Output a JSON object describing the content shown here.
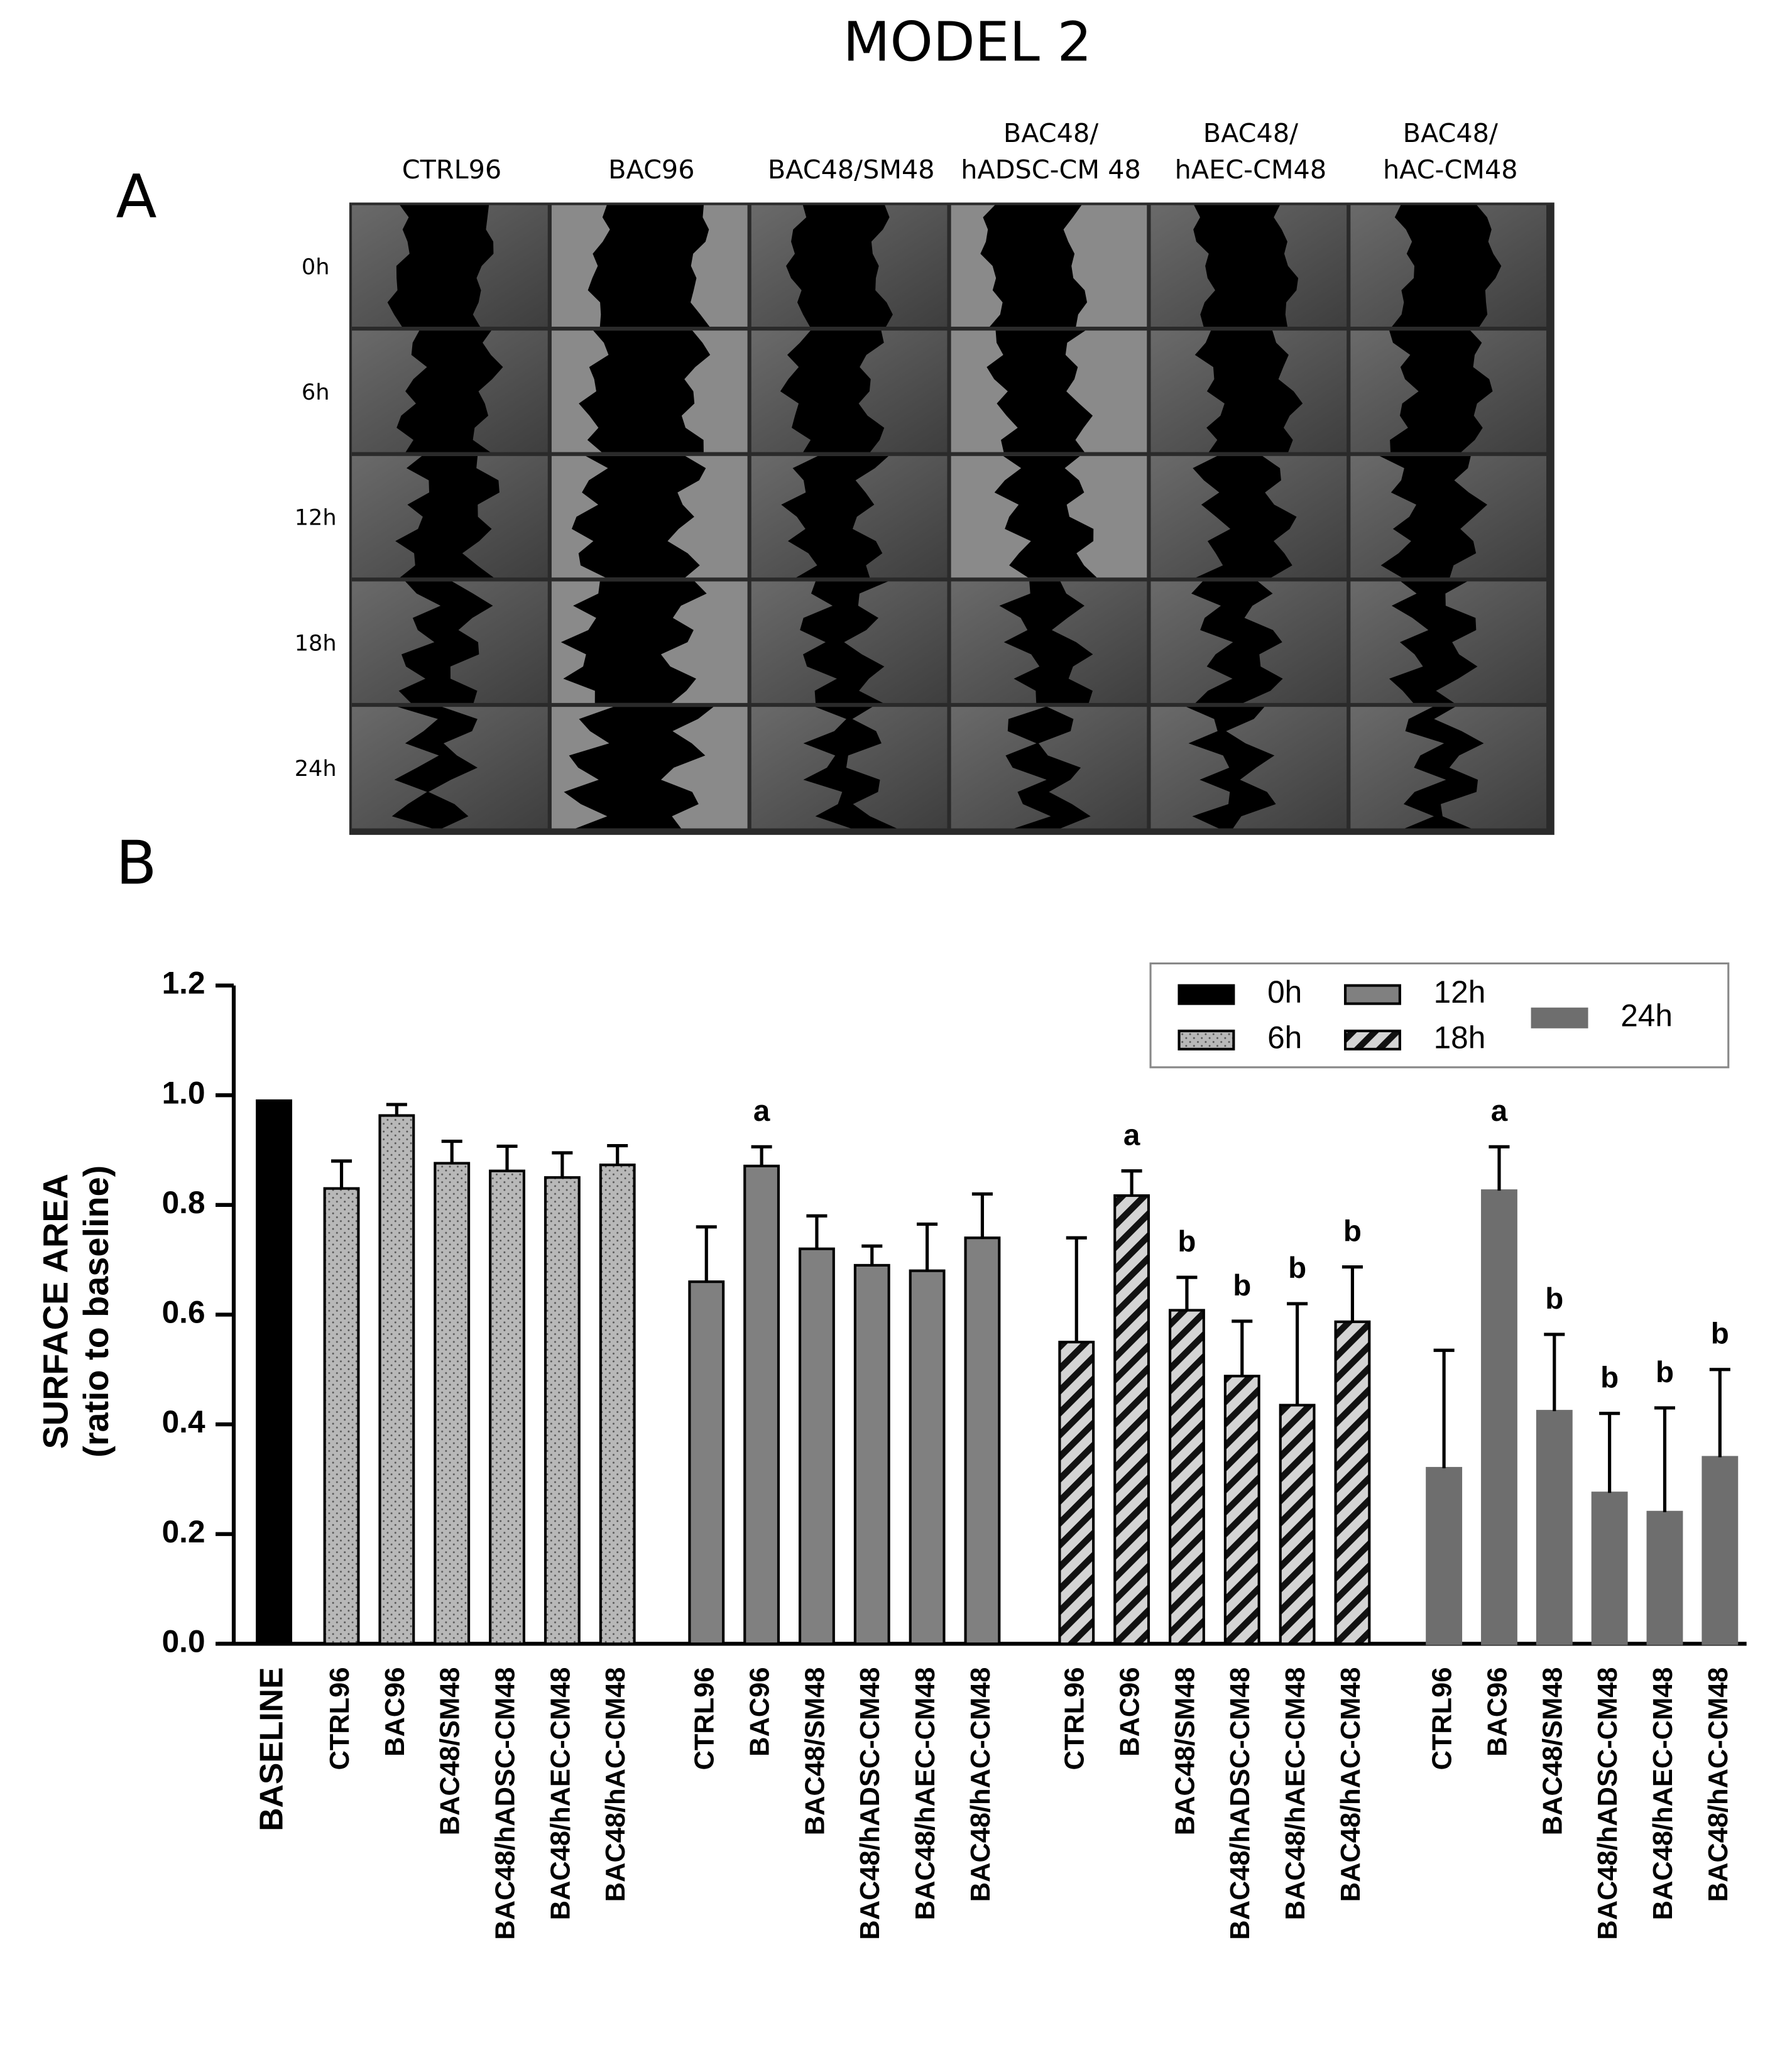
{
  "title": "MODEL 2",
  "panel_a": {
    "label": "A",
    "columns": [
      [
        "CTRL96"
      ],
      [
        "BAC96"
      ],
      [
        "BAC48/SM48"
      ],
      [
        "BAC48/",
        "hADSC-CM 48"
      ],
      [
        "BAC48/",
        "hAEC-CM48"
      ],
      [
        "BAC48/",
        "hAC-CM48"
      ]
    ],
    "rows": [
      "0h",
      "6h",
      "12h",
      "18h",
      "24h"
    ]
  },
  "panel_b": {
    "label": "B"
  },
  "chart_data": {
    "type": "bar",
    "ylabel": [
      "SURFACE AREA",
      "(ratio to baseline)"
    ],
    "ylim": [
      0,
      1.2
    ],
    "yticks": [
      {
        "value": 0,
        "label": "0.0"
      },
      0.2,
      0.4,
      0.6,
      0.8,
      {
        "value": 1,
        "label": "1.0"
      },
      1.2
    ],
    "legend": "upper right",
    "series": [
      {
        "name": "0h",
        "color": "#000000",
        "edgecolor": "#000000",
        "pattern": "solid",
        "categories": [
          "BASELINE"
        ],
        "values": [
          0.99
        ]
      },
      {
        "name": "6h",
        "color": "#b8b8b8",
        "edgecolor": "#000000",
        "pattern": "dots",
        "categories": [
          "CTRL96",
          "BAC96",
          "BAC48/SM48",
          "BAC48/hADSC-CM48",
          "BAC48/hAEC-CM48",
          "BAC48/hAC-CM48"
        ],
        "values": [
          0.83,
          0.963,
          0.876,
          0.862,
          0.85,
          0.873
        ],
        "errors": [
          0.05,
          0.02,
          0.04,
          0.045,
          0.045,
          0.035
        ]
      },
      {
        "name": "12h",
        "color": "#808080",
        "edgecolor": "#000000",
        "pattern": "solid",
        "categories": [
          "CTRL96",
          "BAC96",
          "BAC48/SM48",
          "BAC48/hADSC-CM48",
          "BAC48/hAEC-CM48",
          "BAC48/hAC-CM48"
        ],
        "values": [
          0.66,
          0.871,
          0.72,
          0.69,
          0.68,
          0.74
        ],
        "errors": [
          0.1,
          0.035,
          0.06,
          0.035,
          0.085,
          0.08
        ],
        "annotations": [
          null,
          "a",
          null,
          null,
          null,
          null
        ]
      },
      {
        "name": "18h",
        "color": "#d4d4d4",
        "edgecolor": "#000000",
        "pattern": "hatch",
        "categories": [
          "CTRL96",
          "BAC96",
          "BAC48/SM48",
          "BAC48/hADSC-CM48",
          "BAC48/hAEC-CM48",
          "BAC48/hAC-CM48"
        ],
        "values": [
          0.55,
          0.817,
          0.608,
          0.488,
          0.435,
          0.587
        ],
        "errors": [
          0.19,
          0.045,
          0.06,
          0.1,
          0.185,
          0.1
        ],
        "annotations": [
          null,
          "a",
          "b",
          "b",
          "b",
          "b"
        ]
      },
      {
        "name": "24h",
        "color": "#6e6e6e",
        "edgecolor": "#6e6e6e",
        "pattern": "solid",
        "categories": [
          "CTRL96",
          "BAC96",
          "BAC48/SM48",
          "BAC48/hADSC-CM48",
          "BAC48/hAEC-CM48",
          "BAC48/hAC-CM48"
        ],
        "values": [
          0.32,
          0.826,
          0.424,
          0.275,
          0.24,
          0.34
        ],
        "errors": [
          0.215,
          0.08,
          0.14,
          0.145,
          0.19,
          0.16
        ],
        "annotations": [
          null,
          "a",
          "b",
          "b",
          "b",
          "b"
        ]
      }
    ]
  }
}
